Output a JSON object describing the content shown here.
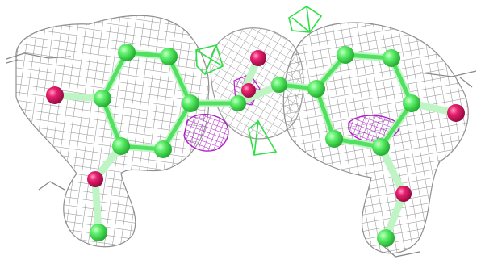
{
  "scene": {
    "background_color": "#ffffff",
    "colors": {
      "carbon": "#47e655",
      "carbon_dark": "#22b532",
      "oxygen": "#e8206e",
      "oxygen_dark": "#b0104f",
      "bond": "#9af0a2",
      "density_mesh": "#8f8f8f",
      "negative_density": "#b01ec8",
      "positive_density": "#2ee045",
      "backbone_trace": "#888888"
    },
    "icons": [
      "molecule-icon",
      "density-mesh-icon"
    ]
  }
}
